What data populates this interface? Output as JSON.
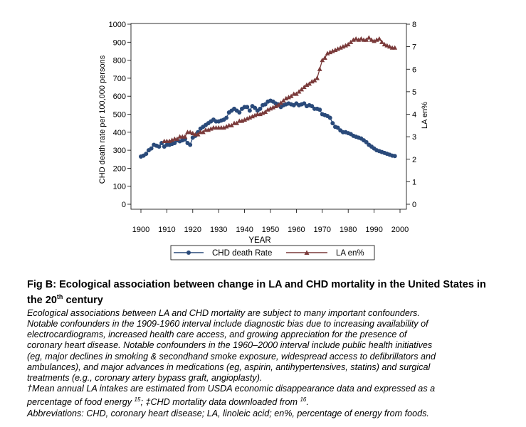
{
  "chart_data": {
    "type": "line",
    "xlabel": "YEAR",
    "ylabel_left": "CHD death rate per 100,000 persons",
    "ylabel_right": "LA en%",
    "xlim": [
      1900,
      2000
    ],
    "ylim_left": [
      0,
      1000
    ],
    "ylim_right": [
      0,
      8
    ],
    "x_ticks": [
      "1900",
      "1910",
      "1920",
      "1930",
      "1940",
      "1950",
      "1960",
      "1970",
      "1980",
      "1990",
      "2000"
    ],
    "y_left_ticks": [
      "0",
      "100",
      "200",
      "300",
      "400",
      "500",
      "600",
      "700",
      "800",
      "900",
      "1000"
    ],
    "y_right_ticks": [
      "0",
      "1",
      "2",
      "3",
      "4",
      "5",
      "6",
      "7",
      "8"
    ],
    "legend_position": "bottom",
    "series": [
      {
        "name": "CHD death Rate",
        "axis": "left",
        "color": "#2a4a7a",
        "marker": "circle",
        "points": [
          [
            1900,
            265
          ],
          [
            1901,
            270
          ],
          [
            1902,
            280
          ],
          [
            1903,
            300
          ],
          [
            1904,
            310
          ],
          [
            1905,
            330
          ],
          [
            1906,
            325
          ],
          [
            1907,
            320
          ],
          [
            1908,
            340
          ],
          [
            1909,
            320
          ],
          [
            1910,
            330
          ],
          [
            1911,
            330
          ],
          [
            1912,
            335
          ],
          [
            1913,
            340
          ],
          [
            1914,
            355
          ],
          [
            1915,
            350
          ],
          [
            1916,
            355
          ],
          [
            1917,
            360
          ],
          [
            1918,
            340
          ],
          [
            1919,
            330
          ],
          [
            1920,
            370
          ],
          [
            1921,
            380
          ],
          [
            1922,
            400
          ],
          [
            1923,
            420
          ],
          [
            1924,
            430
          ],
          [
            1925,
            440
          ],
          [
            1926,
            450
          ],
          [
            1927,
            460
          ],
          [
            1928,
            470
          ],
          [
            1929,
            460
          ],
          [
            1930,
            460
          ],
          [
            1931,
            465
          ],
          [
            1932,
            470
          ],
          [
            1933,
            480
          ],
          [
            1934,
            510
          ],
          [
            1935,
            520
          ],
          [
            1936,
            530
          ],
          [
            1937,
            520
          ],
          [
            1938,
            510
          ],
          [
            1939,
            530
          ],
          [
            1940,
            540
          ],
          [
            1941,
            540
          ],
          [
            1942,
            520
          ],
          [
            1943,
            545
          ],
          [
            1944,
            535
          ],
          [
            1945,
            520
          ],
          [
            1946,
            530
          ],
          [
            1947,
            550
          ],
          [
            1948,
            555
          ],
          [
            1949,
            570
          ],
          [
            1950,
            575
          ],
          [
            1951,
            570
          ],
          [
            1952,
            560
          ],
          [
            1953,
            555
          ],
          [
            1954,
            540
          ],
          [
            1955,
            550
          ],
          [
            1956,
            555
          ],
          [
            1957,
            560
          ],
          [
            1958,
            555
          ],
          [
            1959,
            550
          ],
          [
            1960,
            560
          ],
          [
            1961,
            550
          ],
          [
            1962,
            555
          ],
          [
            1963,
            560
          ],
          [
            1964,
            545
          ],
          [
            1965,
            550
          ],
          [
            1966,
            545
          ],
          [
            1967,
            530
          ],
          [
            1968,
            530
          ],
          [
            1969,
            525
          ],
          [
            1970,
            500
          ],
          [
            1971,
            495
          ],
          [
            1972,
            490
          ],
          [
            1973,
            480
          ],
          [
            1974,
            450
          ],
          [
            1975,
            430
          ],
          [
            1976,
            425
          ],
          [
            1977,
            410
          ],
          [
            1978,
            400
          ],
          [
            1979,
            400
          ],
          [
            1980,
            395
          ],
          [
            1981,
            390
          ],
          [
            1982,
            380
          ],
          [
            1983,
            375
          ],
          [
            1984,
            370
          ],
          [
            1985,
            365
          ],
          [
            1986,
            355
          ],
          [
            1987,
            345
          ],
          [
            1988,
            330
          ],
          [
            1989,
            320
          ],
          [
            1990,
            310
          ],
          [
            1991,
            300
          ],
          [
            1992,
            295
          ],
          [
            1993,
            290
          ],
          [
            1994,
            285
          ],
          [
            1995,
            280
          ],
          [
            1996,
            275
          ],
          [
            1997,
            270
          ],
          [
            1998,
            268
          ]
        ]
      },
      {
        "name": "LA en%",
        "axis": "right",
        "color": "#7a3a3a",
        "marker": "triangle",
        "points": [
          [
            1909,
            2.8
          ],
          [
            1910,
            2.8
          ],
          [
            1911,
            2.8
          ],
          [
            1912,
            2.85
          ],
          [
            1913,
            2.9
          ],
          [
            1914,
            2.9
          ],
          [
            1915,
            3.0
          ],
          [
            1916,
            3.0
          ],
          [
            1917,
            3.0
          ],
          [
            1918,
            3.2
          ],
          [
            1919,
            3.2
          ],
          [
            1920,
            3.15
          ],
          [
            1921,
            3.1
          ],
          [
            1922,
            3.1
          ],
          [
            1923,
            3.2
          ],
          [
            1924,
            3.2
          ],
          [
            1925,
            3.3
          ],
          [
            1926,
            3.3
          ],
          [
            1927,
            3.35
          ],
          [
            1928,
            3.4
          ],
          [
            1929,
            3.4
          ],
          [
            1930,
            3.4
          ],
          [
            1931,
            3.4
          ],
          [
            1932,
            3.4
          ],
          [
            1933,
            3.45
          ],
          [
            1934,
            3.5
          ],
          [
            1935,
            3.5
          ],
          [
            1936,
            3.6
          ],
          [
            1937,
            3.6
          ],
          [
            1938,
            3.7
          ],
          [
            1939,
            3.7
          ],
          [
            1940,
            3.75
          ],
          [
            1941,
            3.8
          ],
          [
            1942,
            3.85
          ],
          [
            1943,
            3.9
          ],
          [
            1944,
            3.95
          ],
          [
            1945,
            4.0
          ],
          [
            1946,
            4.0
          ],
          [
            1947,
            4.05
          ],
          [
            1948,
            4.1
          ],
          [
            1949,
            4.2
          ],
          [
            1950,
            4.25
          ],
          [
            1951,
            4.3
          ],
          [
            1952,
            4.35
          ],
          [
            1953,
            4.4
          ],
          [
            1954,
            4.5
          ],
          [
            1955,
            4.6
          ],
          [
            1956,
            4.7
          ],
          [
            1957,
            4.75
          ],
          [
            1958,
            4.8
          ],
          [
            1959,
            4.9
          ],
          [
            1960,
            4.9
          ],
          [
            1961,
            5.0
          ],
          [
            1962,
            5.1
          ],
          [
            1963,
            5.2
          ],
          [
            1964,
            5.3
          ],
          [
            1965,
            5.35
          ],
          [
            1966,
            5.45
          ],
          [
            1967,
            5.5
          ],
          [
            1968,
            5.6
          ],
          [
            1969,
            6.0
          ],
          [
            1970,
            6.4
          ],
          [
            1971,
            6.5
          ],
          [
            1972,
            6.7
          ],
          [
            1973,
            6.75
          ],
          [
            1974,
            6.8
          ],
          [
            1975,
            6.85
          ],
          [
            1976,
            6.9
          ],
          [
            1977,
            6.95
          ],
          [
            1978,
            7.0
          ],
          [
            1979,
            7.05
          ],
          [
            1980,
            7.1
          ],
          [
            1981,
            7.2
          ],
          [
            1982,
            7.3
          ],
          [
            1983,
            7.35
          ],
          [
            1984,
            7.3
          ],
          [
            1985,
            7.35
          ],
          [
            1986,
            7.3
          ],
          [
            1987,
            7.3
          ],
          [
            1988,
            7.4
          ],
          [
            1989,
            7.3
          ],
          [
            1990,
            7.25
          ],
          [
            1991,
            7.3
          ],
          [
            1992,
            7.35
          ],
          [
            1993,
            7.2
          ],
          [
            1994,
            7.1
          ],
          [
            1995,
            7.05
          ],
          [
            1996,
            7.0
          ],
          [
            1997,
            6.95
          ],
          [
            1998,
            6.95
          ]
        ]
      }
    ]
  },
  "caption": {
    "title_main": "Fig B: Ecological association between change in LA and CHD mortality in the United States in the 20",
    "title_sup": "th",
    "title_end": " century",
    "body_lines": [
      "Ecological associations between LA and CHD mortality are subject to many important confounders.",
      "Notable confounders in the 1909-1960 interval include diagnostic bias due to increasing availability of",
      "electrocardiograms, increased health care access, and growing appreciation for the presence of",
      "coronary heart disease. Notable confounders in the 1960–2000 interval include public health initiatives",
      "(eg, major declines in smoking & secondhand smoke exposure, widespread access to defibrillators and",
      "ambulances), and major advances in medications (eg, aspirin, antihypertensives, statins) and surgical",
      "treatments (e.g., coronary artery bypass graft, angioplasty)."
    ],
    "note1_a": "†Mean annual LA intakes are estimated from USDA economic disappearance data and expressed as a",
    "note1_b": "percentage of food energy ",
    "note1_sup1": "15",
    "note1_c": "; ‡CHD mortality data downloaded from ",
    "note1_sup2": "16",
    "note1_d": ".",
    "abbrev": "Abbreviations: CHD, coronary heart disease; LA, linoleic acid; en%, percentage of energy from foods."
  }
}
